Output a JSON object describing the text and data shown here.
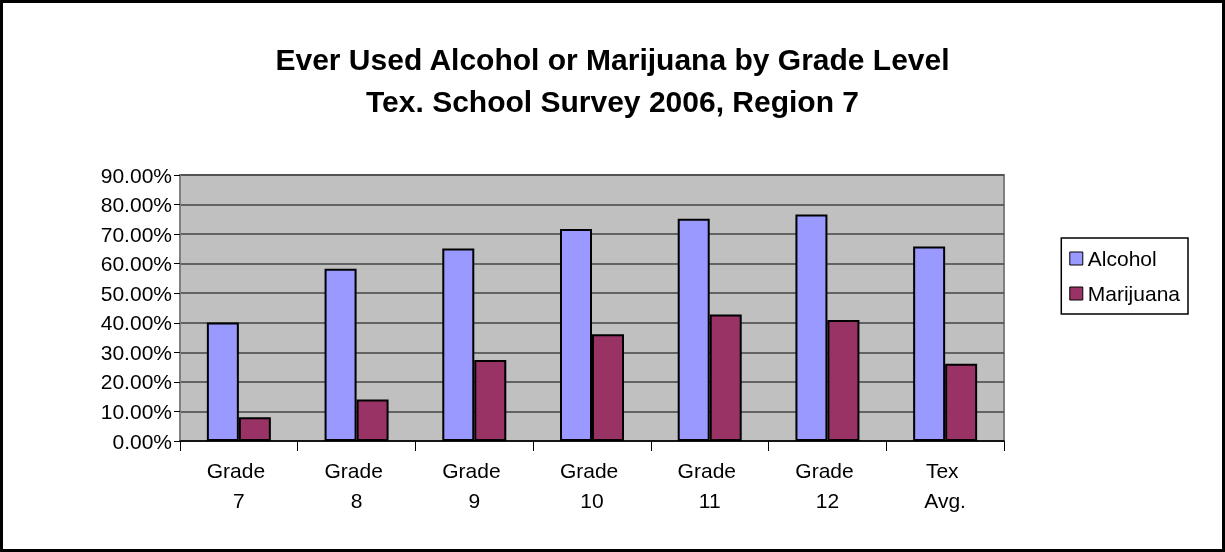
{
  "chart_data": {
    "type": "bar",
    "title": "Ever Used Alcohol or Marijuana by Grade Level\nTex. School Survey 2006, Region 7",
    "categories": [
      "Grade 7",
      "Grade 8",
      "Grade 9",
      "Grade 10",
      "Grade 11",
      "Grade 12",
      "Tex Avg."
    ],
    "series": [
      {
        "name": "Alcohol",
        "color": "#9999ff",
        "values": [
          40.1,
          58.3,
          65.1,
          71.7,
          75.2,
          76.6,
          65.8
        ]
      },
      {
        "name": "Marijuana",
        "color": "#993366",
        "values": [
          8.0,
          14.0,
          27.4,
          36.1,
          42.8,
          40.9,
          26.1
        ]
      }
    ],
    "ylim": [
      0,
      90
    ],
    "yticks": [
      {
        "value": 0,
        "label": "0.00%"
      },
      {
        "value": 10,
        "label": "10.00%"
      },
      {
        "value": 20,
        "label": "20.00%"
      },
      {
        "value": 30,
        "label": "30.00%"
      },
      {
        "value": 40,
        "label": "40.00%"
      },
      {
        "value": 50,
        "label": "50.00%"
      },
      {
        "value": 60,
        "label": "60.00%"
      },
      {
        "value": 70,
        "label": "70.00%"
      },
      {
        "value": 80,
        "label": "80.00%"
      },
      {
        "value": 90,
        "label": "90.00%"
      }
    ],
    "grid": "y",
    "legend": "right"
  }
}
